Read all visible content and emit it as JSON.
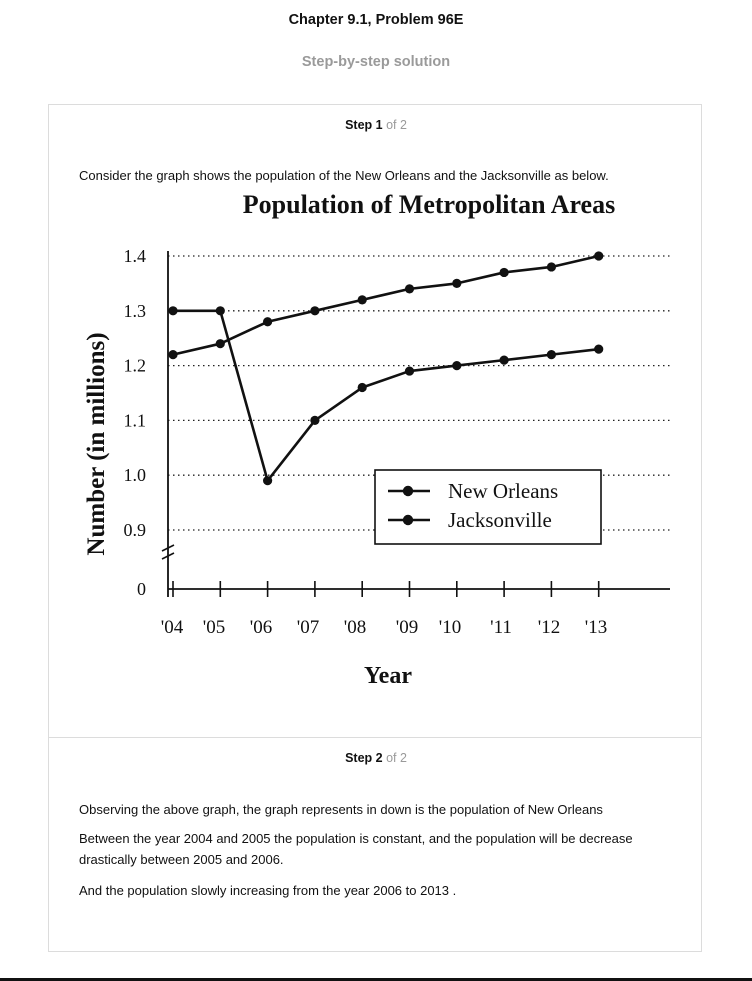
{
  "header": {
    "title": "Chapter 9.1, Problem 96E",
    "subtitle": "Step-by-step solution"
  },
  "steps": [
    {
      "label": "Step 1",
      "of_text": " of 2",
      "paragraphs": [
        "Consider the graph shows the population of the New Orleans and the Jacksonville as below."
      ]
    },
    {
      "label": "Step 2",
      "of_text": " of 2",
      "paragraphs": [
        "Observing the above graph, the graph represents in down is the population of New Orleans",
        "Between the year 2004 and 2005 the population is constant, and the population will be decrease drastically between 2005 and 2006.",
        "And the population slowly increasing from the year 2006 to 2013 ."
      ]
    }
  ],
  "chart_data": {
    "type": "line",
    "title": "Population of Metropolitan Areas",
    "xlabel": "Year",
    "ylabel": "Number (in millions)",
    "categories": [
      "'04",
      "'05",
      "'06",
      "'07",
      "'08",
      "'09",
      "'10",
      "'11",
      "'12",
      "'13"
    ],
    "y_ticks": [
      "0",
      "0.9",
      "1.0",
      "1.1",
      "1.2",
      "1.3",
      "1.4"
    ],
    "y_tick_values": [
      0,
      0.9,
      1.0,
      1.1,
      1.2,
      1.3,
      1.4
    ],
    "axis_break": true,
    "grid": "horizontal dotted",
    "legend_position": "bottom-right",
    "series": [
      {
        "name": "New Orleans",
        "values": [
          1.3,
          1.3,
          0.99,
          1.1,
          1.16,
          1.19,
          1.2,
          1.21,
          1.22,
          1.23
        ]
      },
      {
        "name": "Jacksonville",
        "values": [
          1.22,
          1.24,
          1.28,
          1.3,
          1.32,
          1.34,
          1.35,
          1.37,
          1.38,
          1.4
        ]
      }
    ]
  }
}
